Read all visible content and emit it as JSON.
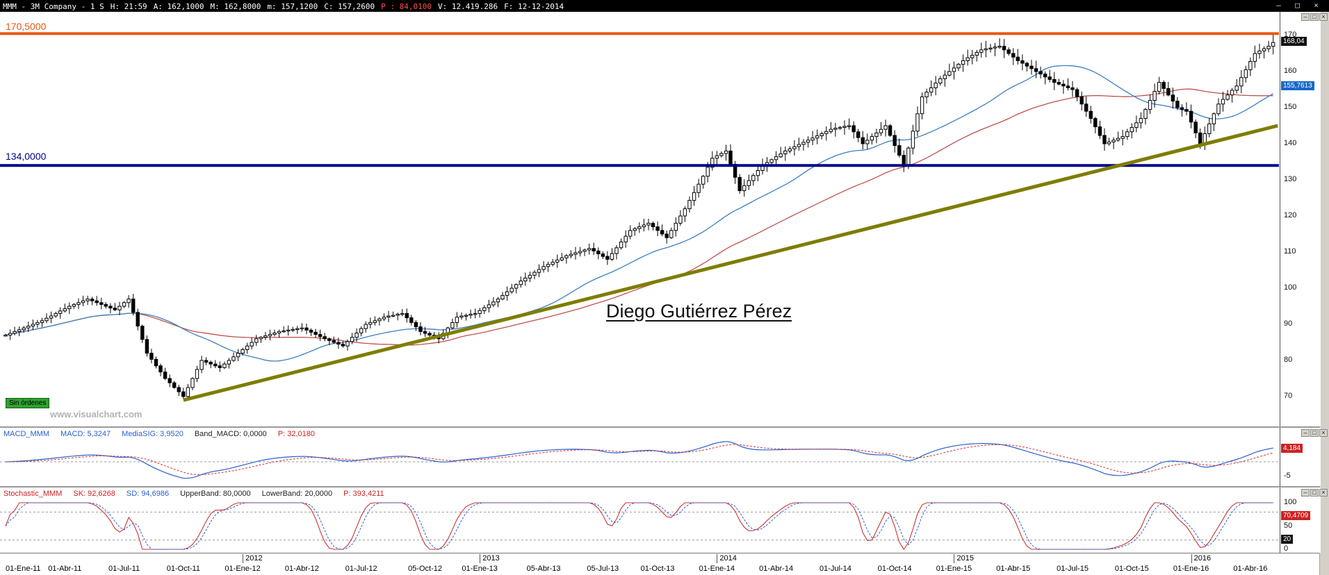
{
  "window": {
    "title_segments": [
      {
        "text": "MMM - 3M Company -  1 S",
        "color": "#ffffff"
      },
      {
        "text": "H: 21:59",
        "color": "#ffffff"
      },
      {
        "text": "A: 162,1000",
        "color": "#ffffff"
      },
      {
        "text": "M: 162,8000",
        "color": "#ffffff"
      },
      {
        "text": "m: 157,1200",
        "color": "#ffffff"
      },
      {
        "text": "C: 157,2600",
        "color": "#ffffff"
      },
      {
        "text": "P : 84,0100",
        "color": "#ff5050"
      },
      {
        "text": "V: 12.419.286",
        "color": "#ffffff"
      },
      {
        "text": "F: 12-12-2014",
        "color": "#ffffff"
      }
    ],
    "buttons": {
      "minimize": "–",
      "maximize": "□",
      "close": "×"
    }
  },
  "panel_buttons": {
    "minimize": "–",
    "restore": "□",
    "close": "×"
  },
  "main_chart": {
    "resistance": {
      "label": "170,5000",
      "price": 170.5,
      "color": "#e8570e"
    },
    "support": {
      "label": "134,0000",
      "price": 134.0,
      "color": "#00008b"
    },
    "trendline": {
      "from": {
        "week": 39,
        "price": 69
      },
      "to": {
        "week": 279,
        "price": 145
      },
      "color": "#7e7d00"
    },
    "annotation_text": "Diego Gutiérrez Pérez",
    "no_orders_label": "Sin órdenes",
    "watermark": "www.visualchart.com",
    "last_price_badge": {
      "text": "168,04",
      "value": 168.04,
      "bg": "#111111"
    },
    "ma_badge": {
      "text": "155,7613",
      "value": 155.7613,
      "bg": "#1668c9"
    },
    "price_ticks": [
      170,
      160,
      150,
      140,
      130,
      120,
      110,
      100,
      90,
      80,
      70
    ]
  },
  "chart_data": {
    "type": "candlestick",
    "title": "MMM - 3M Company, 1 week bars",
    "y_range": [
      62,
      176
    ],
    "weekly_closes": [
      87,
      87.5,
      88,
      88.5,
      89,
      89.5,
      90,
      90.5,
      91,
      91.7,
      92.3,
      93,
      93.7,
      94.3,
      95,
      95.5,
      96,
      96.5,
      97,
      96.5,
      96,
      95.5,
      95,
      94.5,
      94,
      95,
      96,
      97,
      93.3,
      89.5,
      85.8,
      82,
      80.3,
      78.5,
      76.8,
      75,
      73.8,
      72.5,
      71.3,
      70,
      72.5,
      75,
      77.5,
      80,
      79.5,
      79,
      78.5,
      78,
      79,
      80,
      81,
      82,
      83,
      84,
      85,
      86,
      86.4,
      86.8,
      87.2,
      87.6,
      88,
      88.2,
      88.4,
      88.6,
      88.8,
      89,
      88.4,
      87.8,
      87.2,
      86.6,
      86,
      85.5,
      85,
      84.5,
      84,
      85.2,
      86.4,
      87.6,
      88.8,
      90,
      90.5,
      91,
      91.5,
      92,
      92.3,
      92.5,
      92.8,
      93,
      91.8,
      90.5,
      89.3,
      88,
      87.5,
      87,
      86.5,
      86,
      87.5,
      89,
      90.5,
      92,
      92.3,
      92.5,
      92.8,
      93,
      93.8,
      94.6,
      95.4,
      96.2,
      97,
      98,
      99,
      100,
      101,
      102,
      102.8,
      103.6,
      104.4,
      105.2,
      106,
      106.6,
      107.2,
      107.8,
      108.4,
      109,
      109.4,
      109.8,
      110.2,
      110.6,
      111,
      110.3,
      109.5,
      108.8,
      108,
      109.6,
      111.2,
      112.8,
      114.4,
      116,
      116.5,
      117,
      117.5,
      118,
      117,
      116,
      115,
      114,
      116,
      118,
      120,
      122,
      124.3,
      126.5,
      128.8,
      131,
      133.5,
      136,
      136.7,
      137.3,
      138,
      134.3,
      130.7,
      127,
      128.4,
      129.8,
      131.2,
      132.6,
      134,
      134.8,
      135.6,
      136.4,
      137.2,
      138,
      138.6,
      139.2,
      139.8,
      140.4,
      141,
      141.6,
      142.2,
      142.8,
      143.4,
      144,
      144.3,
      144.5,
      144.8,
      145,
      143.3,
      141.7,
      140,
      141,
      142,
      143,
      144,
      145,
      142.3,
      139.5,
      136.8,
      134,
      138.8,
      143.5,
      148.3,
      153,
      154.3,
      155.5,
      156.8,
      158,
      159,
      160,
      161,
      162,
      163,
      163.8,
      164.5,
      165.3,
      166,
      166.3,
      166.5,
      166.8,
      167,
      166,
      165,
      164,
      163,
      162.3,
      161.5,
      160.8,
      160,
      159.3,
      158.5,
      157.8,
      157,
      156.5,
      156,
      155.5,
      155,
      153,
      151,
      149,
      147,
      144.7,
      142.3,
      140,
      140.5,
      141,
      141.5,
      142,
      143.3,
      144.5,
      145.8,
      147,
      149.5,
      152,
      154.5,
      157,
      155.3,
      153.5,
      151.8,
      150,
      149.5,
      149,
      146,
      143,
      140,
      142.8,
      145.5,
      148.3,
      151,
      152.3,
      153.5,
      154.8,
      156,
      158.3,
      160.5,
      162.8,
      165,
      165.7,
      166.3,
      167,
      168.04
    ],
    "moving_averages": [
      {
        "name": "fast",
        "period": 30,
        "color": "#3c7fc0"
      },
      {
        "name": "slow",
        "period": 60,
        "color": "#c0504d"
      }
    ],
    "date_labels": [
      {
        "text": "01-Ene-11",
        "week": 0
      },
      {
        "text": "01-Abr-11",
        "week": 13
      },
      {
        "text": "01-Jul-11",
        "week": 26
      },
      {
        "text": "01-Oct-11",
        "week": 39
      },
      {
        "text": "01-Ene-12",
        "week": 52
      },
      {
        "text": "01-Abr-12",
        "week": 65
      },
      {
        "text": "01-Jul-12",
        "week": 78
      },
      {
        "text": "05-Oct-12",
        "week": 92
      },
      {
        "text": "01-Ene-13",
        "week": 104
      },
      {
        "text": "05-Abr-13",
        "week": 118
      },
      {
        "text": "05-Jul-13",
        "week": 131
      },
      {
        "text": "01-Oct-13",
        "week": 143
      },
      {
        "text": "01-Ene-14",
        "week": 156
      },
      {
        "text": "01-Abr-14",
        "week": 169
      },
      {
        "text": "01-Jul-14",
        "week": 182
      },
      {
        "text": "01-Oct-14",
        "week": 195
      },
      {
        "text": "01-Ene-15",
        "week": 208
      },
      {
        "text": "01-Abr-15",
        "week": 221
      },
      {
        "text": "01-Jul-15",
        "week": 234
      },
      {
        "text": "01-Oct-15",
        "week": 247
      },
      {
        "text": "01-Ene-16",
        "week": 260
      },
      {
        "text": "01-Abr-16",
        "week": 273
      }
    ],
    "year_labels": [
      {
        "text": "2012",
        "week": 52
      },
      {
        "text": "2013",
        "week": 104
      },
      {
        "text": "2014",
        "week": 156
      },
      {
        "text": "2015",
        "week": 208
      },
      {
        "text": "2016",
        "week": 260
      }
    ]
  },
  "macd_panel": {
    "header": [
      {
        "text": "MACD_MMM",
        "color": "#2a5fd0"
      },
      {
        "text": "MACD: 5,3247",
        "color": "#2a5fd0"
      },
      {
        "text": "MediaSIG: 3,9520",
        "color": "#2a5fd0"
      },
      {
        "text": "Band_MACD: 0,0000",
        "color": "#222222"
      },
      {
        "text": "P: 32,0180",
        "color": "#cc2222"
      }
    ],
    "value_badge": {
      "text": "4,184",
      "value": 4.184,
      "bg": "#cc2222"
    },
    "ticks": [
      {
        "text": "-5",
        "value": -5
      }
    ],
    "line_colors": {
      "macd": "#2a5fd0",
      "signal": "#cc3333"
    }
  },
  "stoch_panel": {
    "header": [
      {
        "text": "Stochastic_MMM",
        "color": "#cc2222"
      },
      {
        "text": "SK: 92,6268",
        "color": "#cc2222"
      },
      {
        "text": "SD: 94,6986",
        "color": "#2a5fd0"
      },
      {
        "text": "UpperBand: 80,0000",
        "color": "#222222"
      },
      {
        "text": "LowerBand: 20,0000",
        "color": "#222222"
      },
      {
        "text": "P: 393,4211",
        "color": "#cc2222"
      }
    ],
    "value_badge": {
      "text": "70,4709",
      "value": 70.4709,
      "bg": "#cc2222"
    },
    "band_badges": [
      {
        "text": "20",
        "value": 20,
        "bg": "#111111"
      }
    ],
    "ticks": [
      {
        "text": "100",
        "value": 100
      },
      {
        "text": "50",
        "value": 50
      },
      {
        "text": "0",
        "value": 0
      }
    ],
    "bands": [
      80,
      20
    ],
    "line_colors": {
      "sk": "#cc3333",
      "sd": "#2a5fd0"
    }
  }
}
